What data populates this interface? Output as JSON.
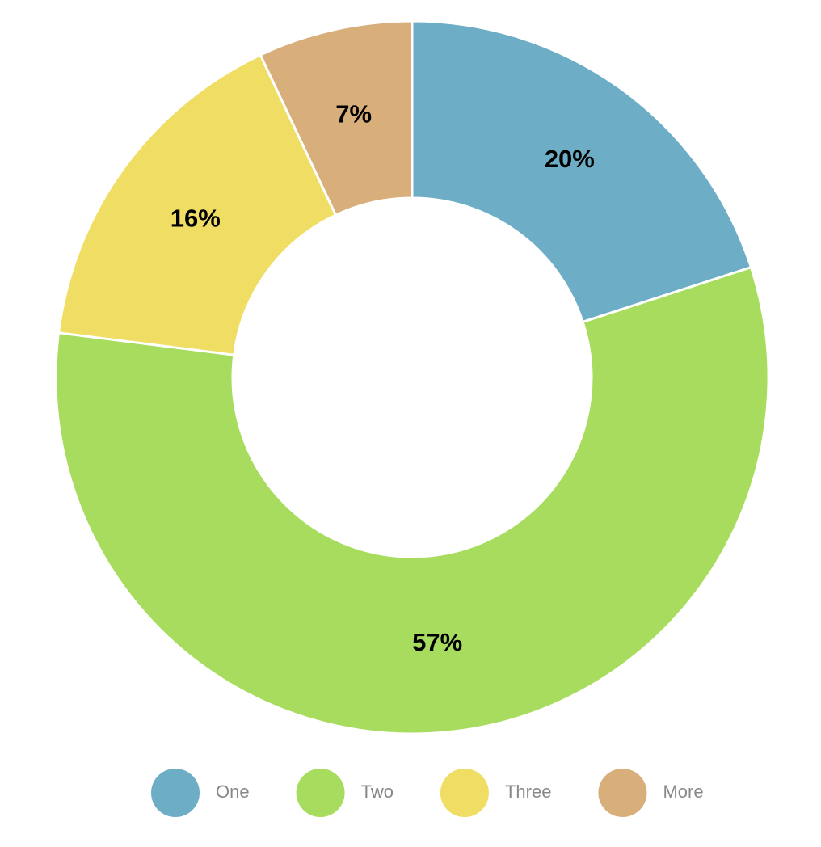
{
  "chart_data": {
    "type": "donut",
    "categories": [
      "One",
      "Two",
      "Three",
      "More"
    ],
    "values": [
      20,
      57,
      16,
      7
    ],
    "value_labels": [
      "20%",
      "57%",
      "16%",
      "7%"
    ],
    "colors": [
      "#6daec6",
      "#a8dc5e",
      "#f0dd63",
      "#d8ae7a"
    ],
    "legend": "bottom"
  }
}
